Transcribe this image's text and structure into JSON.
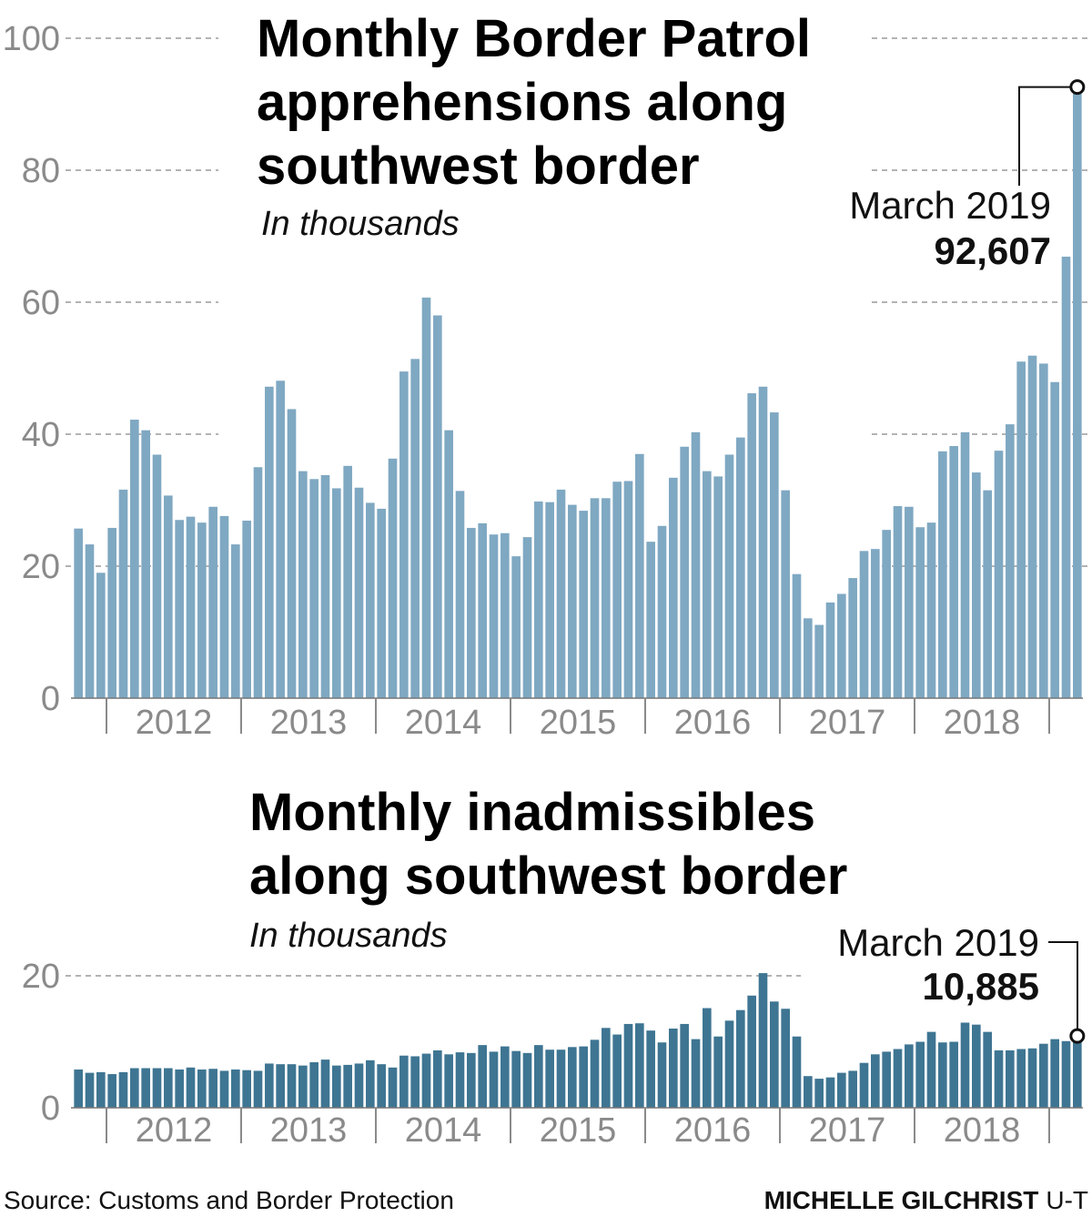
{
  "chart_data": [
    {
      "type": "bar",
      "title_lines": [
        "Monthly Border Patrol",
        "apprehensions along",
        "southwest border"
      ],
      "subtitle": "In thousands",
      "unit": "thousands",
      "x_start": "2011-10",
      "x_end": "2019-03",
      "year_labels": [
        "2012",
        "2013",
        "2014",
        "2015",
        "2016",
        "2017",
        "2018"
      ],
      "y_ticks": [
        "0",
        "20",
        "40",
        "60",
        "80",
        "100"
      ],
      "ylim": [
        0,
        100
      ],
      "grid": true,
      "color": "#7fa8c2",
      "values": [
        25.7,
        23.3,
        19.0,
        25.8,
        31.6,
        42.2,
        40.6,
        36.9,
        30.7,
        27.0,
        27.5,
        26.6,
        29.0,
        27.6,
        23.3,
        26.9,
        35.0,
        47.2,
        48.1,
        43.8,
        34.4,
        33.2,
        33.8,
        31.8,
        35.2,
        31.9,
        29.6,
        28.7,
        36.3,
        49.5,
        51.4,
        60.7,
        58.0,
        40.6,
        31.4,
        25.8,
        26.5,
        24.8,
        25.0,
        21.5,
        24.4,
        29.8,
        29.7,
        31.6,
        29.3,
        28.4,
        30.3,
        30.3,
        32.8,
        32.9,
        37.0,
        23.7,
        26.1,
        33.4,
        38.1,
        40.3,
        34.4,
        33.6,
        36.9,
        39.5,
        46.2,
        47.2,
        43.3,
        31.5,
        18.8,
        12.1,
        11.1,
        14.5,
        15.8,
        18.2,
        22.3,
        22.6,
        25.5,
        29.1,
        29.0,
        25.9,
        26.6,
        37.4,
        38.2,
        40.3,
        34.2,
        31.5,
        37.5,
        41.5,
        51.0,
        51.9,
        50.7,
        47.9,
        66.9,
        92.6
      ],
      "annotation": {
        "label": "March 2019",
        "value": "92,607",
        "point_value": 92.607
      }
    },
    {
      "type": "bar",
      "title_lines": [
        "Monthly inadmissibles",
        "along southwest border"
      ],
      "subtitle": "In thousands",
      "unit": "thousands",
      "x_start": "2011-10",
      "x_end": "2019-03",
      "year_labels": [
        "2012",
        "2013",
        "2014",
        "2015",
        "2016",
        "2017",
        "2018"
      ],
      "y_ticks": [
        "0",
        "20"
      ],
      "ylim": [
        0,
        20
      ],
      "grid": true,
      "color": "#3e7592",
      "values": [
        5.8,
        5.3,
        5.4,
        5.1,
        5.4,
        6.0,
        6.0,
        6.0,
        6.0,
        5.8,
        6.1,
        5.8,
        5.9,
        5.6,
        5.8,
        5.7,
        5.6,
        6.7,
        6.6,
        6.6,
        6.4,
        6.9,
        7.3,
        6.4,
        6.5,
        6.7,
        7.2,
        6.6,
        6.1,
        7.9,
        7.8,
        8.2,
        8.7,
        8.1,
        8.4,
        8.3,
        9.5,
        8.5,
        9.3,
        8.6,
        8.3,
        9.5,
        8.8,
        8.8,
        9.2,
        9.3,
        10.3,
        12.1,
        11.1,
        12.7,
        12.8,
        11.7,
        9.9,
        12.0,
        12.7,
        10.4,
        15.1,
        10.8,
        13.2,
        14.8,
        17.0,
        20.4,
        16.1,
        15.0,
        10.8,
        4.8,
        4.4,
        4.6,
        5.3,
        5.6,
        6.8,
        8.1,
        8.5,
        8.9,
        9.6,
        10.0,
        11.5,
        9.9,
        10.0,
        12.9,
        12.6,
        11.5,
        8.7,
        8.7,
        8.9,
        9.0,
        9.7,
        10.4,
        10.1,
        10.885
      ],
      "annotation": {
        "label": "March 2019",
        "value": "10,885",
        "point_value": 10.885
      }
    }
  ],
  "footer": {
    "source": "Source: Customs and Border Protection",
    "credit_name": "MICHELLE GILCHRIST",
    "credit_org": "U-T"
  }
}
